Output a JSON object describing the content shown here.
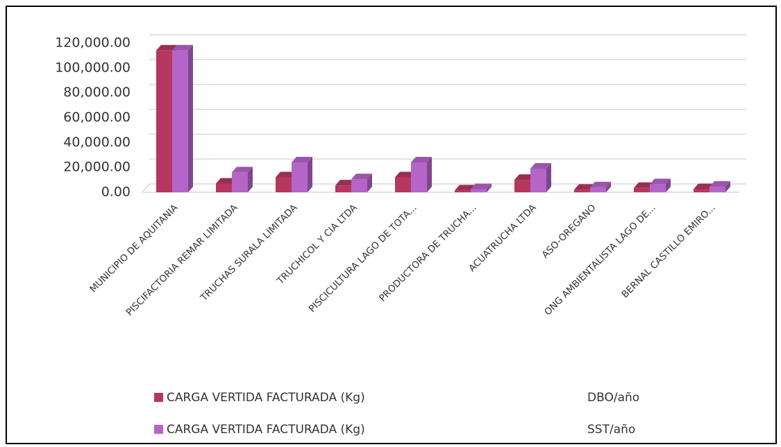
{
  "chart_data": {
    "type": "bar3d",
    "categories": [
      "MUNICIPIO DE AQUITANIA",
      "PISCIFACTORIA REMAR LIMITADA",
      "TRUCHAS SURALA LIMITADA",
      "TRUCHICOL Y CIA LTDA",
      "PISCICULTURA LAGO DE TOTA...",
      "PRODUCTORA DE TRUCHA...",
      "ACUATRUCHA LTDA",
      "ASO-OREGANO",
      "ONG AMBIENTALISTA LAGO DE...",
      "BERNAL CASTILLO EMIRO..."
    ],
    "series": [
      {
        "name": "CARGA VERTIDA FACTURADA (Kg)",
        "unit": "DBO/año",
        "color": "#b5375f",
        "values": [
          114000,
          7000,
          12000,
          5500,
          12000,
          1500,
          10000,
          2000,
          3500,
          2500
        ]
      },
      {
        "name": "CARGA VERTIDA FACTURADA (Kg)",
        "unit": "SST/año",
        "color": "#b565c8",
        "values": [
          114000,
          16000,
          24000,
          10500,
          24000,
          2500,
          19000,
          4000,
          6500,
          4500
        ]
      }
    ],
    "ylim": [
      0,
      120000
    ],
    "yticks": [
      {
        "value": 0,
        "label": "0.00"
      },
      {
        "value": 20000,
        "label": "20,000.00"
      },
      {
        "value": 40000,
        "label": "40,000.00"
      },
      {
        "value": 60000,
        "label": "60,000.00"
      },
      {
        "value": 80000,
        "label": "80,000.00"
      },
      {
        "value": 100000,
        "label": "100,000.00"
      },
      {
        "value": 120000,
        "label": "120,000.00"
      }
    ],
    "grid": true
  }
}
